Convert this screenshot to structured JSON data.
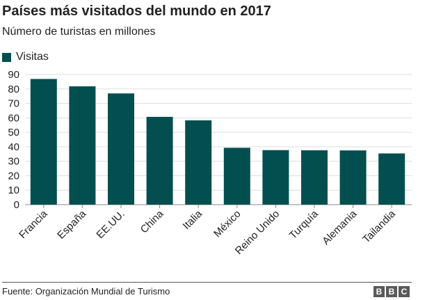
{
  "header": {
    "title": "Países más visitados del mundo en 2017",
    "subtitle": "Número de turistas en millones"
  },
  "legend": {
    "label": "Visitas"
  },
  "footer": {
    "source": "Fuente: Organización Mundial de Turismo",
    "logo_letters": [
      "B",
      "B",
      "C"
    ]
  },
  "colors": {
    "bar": "#034f4f",
    "grid": "#dddddd",
    "axis": "#888888"
  },
  "chart_data": {
    "type": "bar",
    "title": "Países más visitados del mundo en 2017",
    "subtitle": "Número de turistas en millones",
    "xlabel": "",
    "ylabel": "",
    "categories": [
      "Francia",
      "España",
      "EE.UU.",
      "China",
      "Italia",
      "México",
      "Reino Unido",
      "Turquía",
      "Alemania",
      "Tailandia"
    ],
    "series": [
      {
        "name": "Visitas",
        "values": [
          86.9,
          81.8,
          76.9,
          60.7,
          58.3,
          39.3,
          37.7,
          37.6,
          37.5,
          35.4
        ]
      }
    ],
    "ylim": [
      0,
      90
    ],
    "yticks": [
      0,
      10,
      20,
      30,
      40,
      50,
      60,
      70,
      80,
      90
    ],
    "grid": true,
    "legend_position": "top-left"
  }
}
